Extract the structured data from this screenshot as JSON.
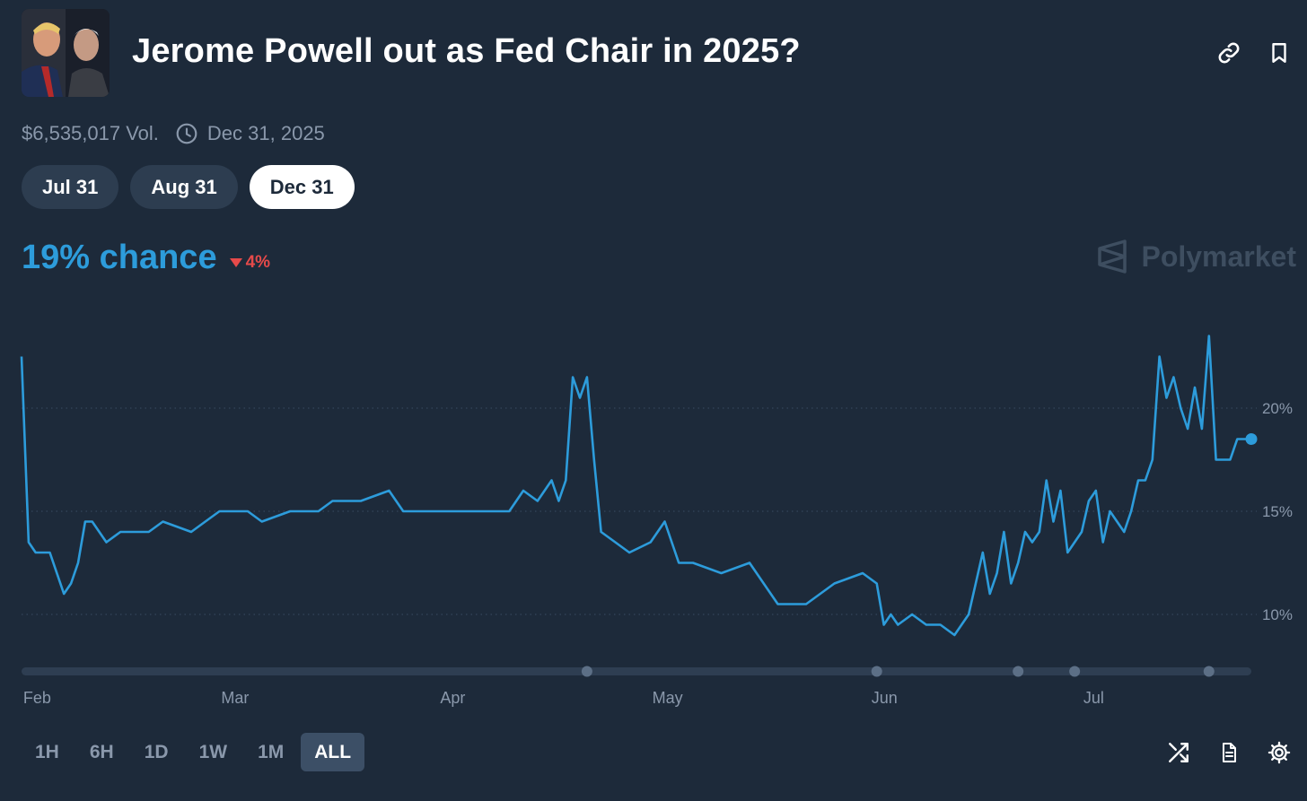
{
  "header": {
    "title": "Jerome Powell out as Fed Chair in 2025?",
    "thumbnail_icon": "market-thumbnail-portraits",
    "actions": [
      {
        "icon": "link-icon"
      },
      {
        "icon": "bookmark-icon"
      }
    ]
  },
  "meta": {
    "volume": "$6,535,017 Vol.",
    "end_date": "Dec 31, 2025",
    "clock_icon": "clock-icon"
  },
  "date_options": [
    {
      "label": "Jul 31",
      "active": false
    },
    {
      "label": "Aug 31",
      "active": false
    },
    {
      "label": "Dec 31",
      "active": true
    }
  ],
  "probability": {
    "chance": "19% chance",
    "change": "4%",
    "change_direction": "down",
    "change_color": "#e64a4a",
    "accent_color": "#2d9cdb"
  },
  "brand": {
    "name": "Polymarket",
    "icon": "polymarket-logo-icon"
  },
  "chart_data": {
    "type": "line",
    "series_color": "#2d9cdb",
    "ylim": [
      7.5,
      24
    ],
    "yticks": [
      10,
      15,
      20
    ],
    "ytick_labels": [
      "10%",
      "15%",
      "20%"
    ],
    "xtick_labels": [
      "Feb",
      "Mar",
      "Apr",
      "May",
      "Jun",
      "Jul"
    ],
    "grid": "dotted horizontal",
    "x": [
      "2025-01-31",
      "2025-02-01",
      "2025-02-02",
      "2025-02-04",
      "2025-02-06",
      "2025-02-07",
      "2025-02-08",
      "2025-02-09",
      "2025-02-10",
      "2025-02-12",
      "2025-02-14",
      "2025-02-16",
      "2025-02-18",
      "2025-02-20",
      "2025-02-24",
      "2025-02-26",
      "2025-02-28",
      "2025-03-04",
      "2025-03-06",
      "2025-03-10",
      "2025-03-14",
      "2025-03-16",
      "2025-03-20",
      "2025-03-24",
      "2025-03-26",
      "2025-03-28",
      "2025-03-31",
      "2025-04-02",
      "2025-04-06",
      "2025-04-10",
      "2025-04-12",
      "2025-04-14",
      "2025-04-16",
      "2025-04-17",
      "2025-04-18",
      "2025-04-19",
      "2025-04-20",
      "2025-04-21",
      "2025-04-22",
      "2025-04-23",
      "2025-04-25",
      "2025-04-27",
      "2025-04-30",
      "2025-05-02",
      "2025-05-04",
      "2025-05-06",
      "2025-05-10",
      "2025-05-14",
      "2025-05-18",
      "2025-05-22",
      "2025-05-26",
      "2025-05-30",
      "2025-06-01",
      "2025-06-02",
      "2025-06-03",
      "2025-06-04",
      "2025-06-06",
      "2025-06-08",
      "2025-06-10",
      "2025-06-12",
      "2025-06-14",
      "2025-06-16",
      "2025-06-17",
      "2025-06-18",
      "2025-06-19",
      "2025-06-20",
      "2025-06-21",
      "2025-06-22",
      "2025-06-23",
      "2025-06-24",
      "2025-06-25",
      "2025-06-26",
      "2025-06-27",
      "2025-06-28",
      "2025-06-30",
      "2025-07-01",
      "2025-07-02",
      "2025-07-03",
      "2025-07-04",
      "2025-07-05",
      "2025-07-06",
      "2025-07-07",
      "2025-07-08",
      "2025-07-09",
      "2025-07-10",
      "2025-07-11",
      "2025-07-12",
      "2025-07-13",
      "2025-07-14",
      "2025-07-15",
      "2025-07-16",
      "2025-07-17",
      "2025-07-18",
      "2025-07-19",
      "2025-07-20",
      "2025-07-21",
      "2025-07-22",
      "2025-07-23",
      "2025-07-24"
    ],
    "values": [
      22.5,
      13.5,
      13,
      13,
      11,
      11.5,
      12.5,
      14.5,
      14.5,
      13.5,
      14,
      14,
      14,
      14.5,
      14,
      14.5,
      15,
      15,
      14.5,
      15,
      15,
      15.5,
      15.5,
      16,
      15,
      15,
      15,
      15,
      15,
      15,
      16,
      15.5,
      16.5,
      15.5,
      16.5,
      21.5,
      20.5,
      21.5,
      17.5,
      14,
      13.5,
      13,
      13.5,
      14.5,
      12.5,
      12.5,
      12,
      12.5,
      10.5,
      10.5,
      11.5,
      12,
      11.5,
      9.5,
      10,
      9.5,
      10,
      9.5,
      9.5,
      9,
      10,
      13,
      11,
      12,
      14,
      11.5,
      12.5,
      14,
      13.5,
      14,
      16.5,
      14.5,
      16,
      13,
      14,
      15.5,
      16,
      13.5,
      15,
      14.5,
      14,
      15,
      16.5,
      16.5,
      17.5,
      22.5,
      20.5,
      21.5,
      20,
      19,
      21,
      19,
      23.5,
      17.5,
      17.5,
      17.5,
      18.5,
      18.5,
      18.5
    ],
    "markers_on_timeline": [
      "2025-04-21",
      "2025-06-01",
      "2025-06-21",
      "2025-06-29",
      "2025-07-18"
    ]
  },
  "time_ranges": [
    {
      "label": "1H",
      "active": false
    },
    {
      "label": "6H",
      "active": false
    },
    {
      "label": "1D",
      "active": false
    },
    {
      "label": "1W",
      "active": false
    },
    {
      "label": "1M",
      "active": false
    },
    {
      "label": "ALL",
      "active": true
    }
  ],
  "bottom_actions": [
    {
      "icon": "shuffle-icon"
    },
    {
      "icon": "document-icon"
    },
    {
      "icon": "settings-gear-icon"
    }
  ]
}
